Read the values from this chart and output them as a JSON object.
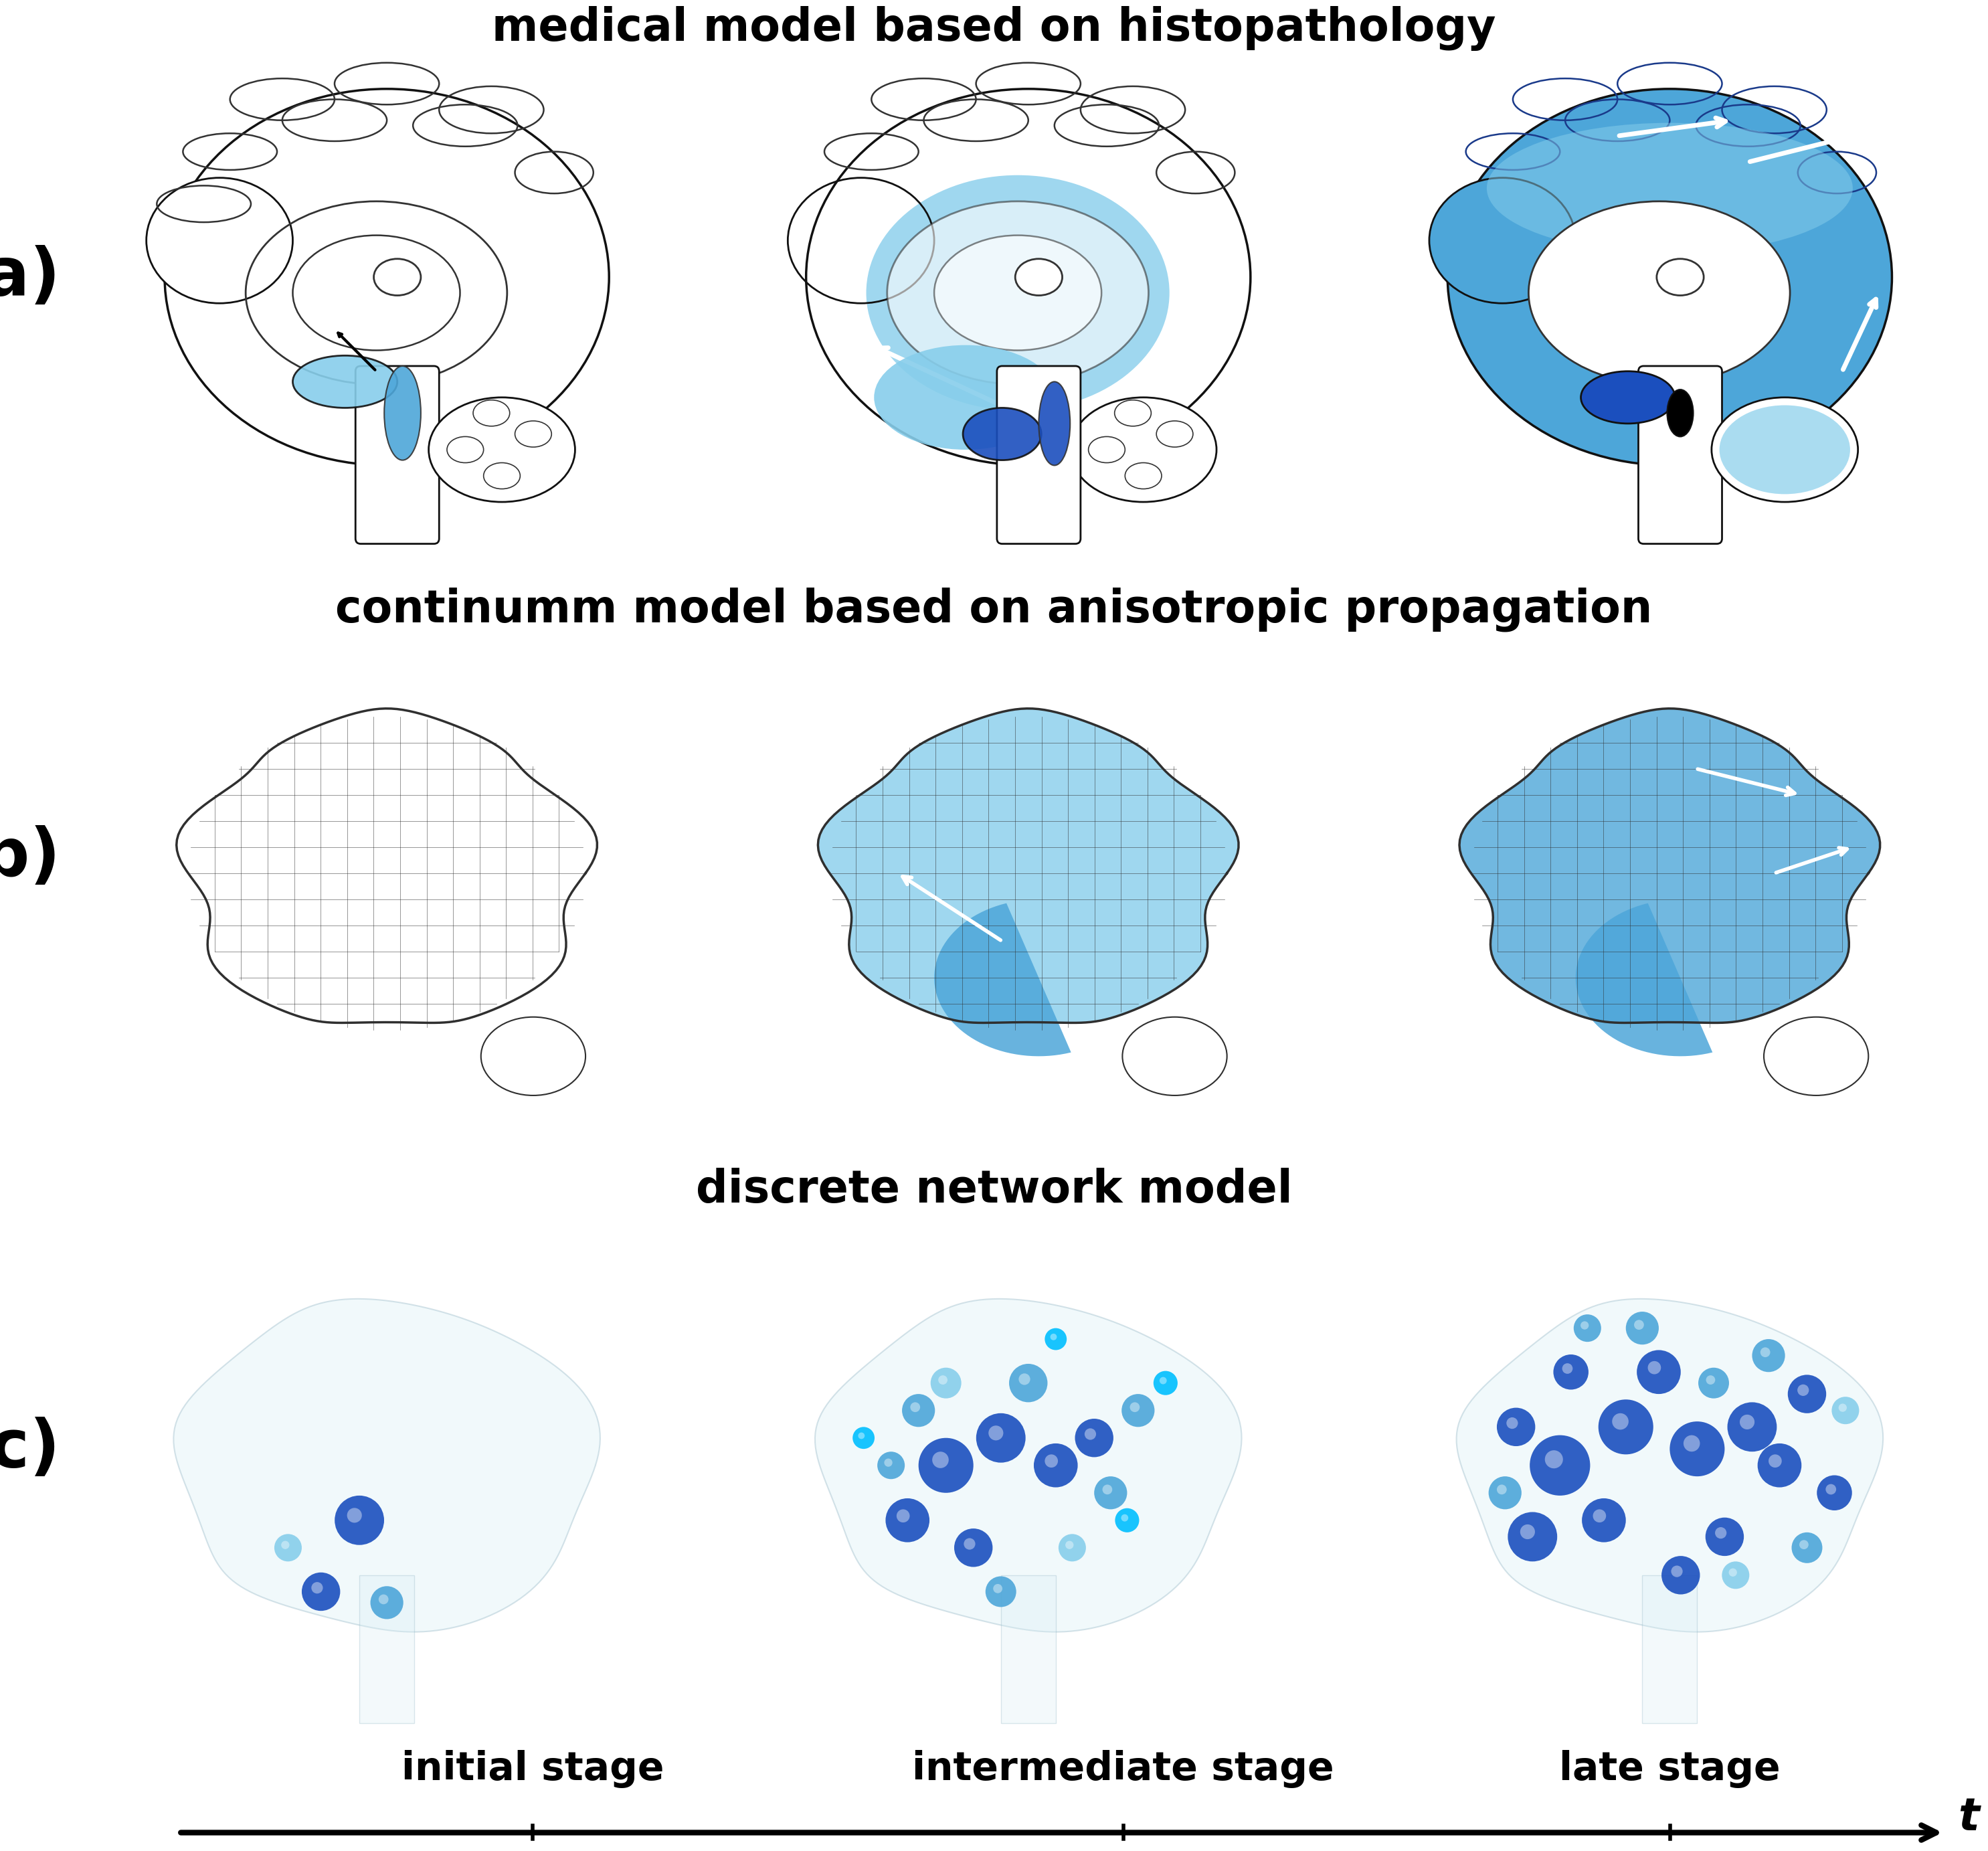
{
  "title_a": "medical model based on histopathology",
  "title_b": "continumm model based on anisotropic propagation",
  "title_c": "discrete network model",
  "label_a": "(a)",
  "label_b": "(b)",
  "label_c": "(c)",
  "col_labels": [
    "initial stage",
    "intermediate stage",
    "late stage"
  ],
  "timeline_label": "t",
  "bg_color": "#ffffff",
  "title_fontsize": 48,
  "label_fontsize": 72,
  "col_label_fontsize": 42,
  "timeline_fontsize": 48,
  "title_color": "#000000",
  "label_color": "#000000",
  "font_weight": "bold",
  "light_blue": "#87CEEB",
  "mid_blue": "#4DA6D9",
  "dark_blue": "#1B4FBE",
  "cyan_blue": "#00BFFF",
  "teal": "#5BC8D0",
  "very_light_blue": "#C8E8F0",
  "mesh_color": "#2F2F2F",
  "outline_color": "#1a1a1a"
}
